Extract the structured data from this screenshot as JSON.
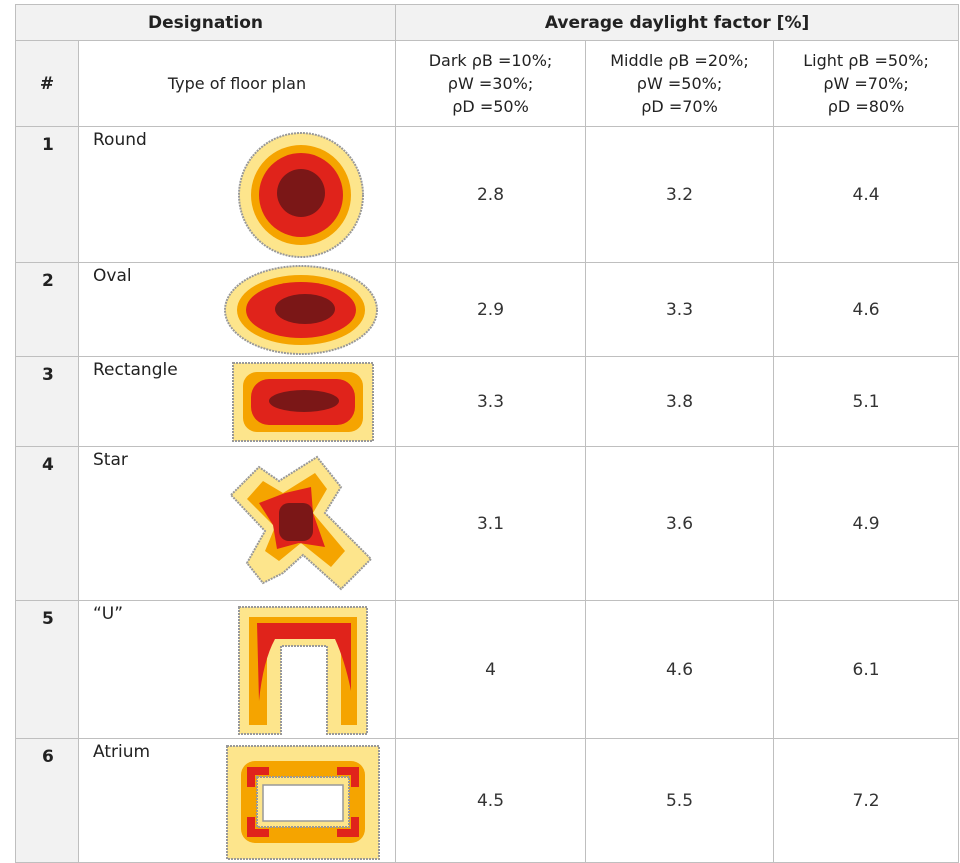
{
  "table": {
    "group_headers": [
      "Designation",
      "Average daylight factor [%]"
    ],
    "columns": [
      [
        "#"
      ],
      [
        "Type of floor plan"
      ],
      [
        "Dark ρB =10%;",
        "ρW =30%;",
        "ρD =50%"
      ],
      [
        "Middle ρB =20%;",
        "ρW =50%;",
        "ρD =70%"
      ],
      [
        "Light ρB =50%;",
        "ρW =70%;",
        "ρD =80%"
      ]
    ],
    "rows": [
      [
        "1",
        "Round",
        2.8,
        3.2,
        4.4
      ],
      [
        "2",
        "Oval",
        2.9,
        3.3,
        4.6
      ],
      [
        "3",
        "Rectangle",
        3.3,
        3.8,
        5.1
      ],
      [
        "4",
        "Star",
        3.1,
        3.6,
        4.9
      ],
      [
        "5",
        "“U”",
        4,
        4.6,
        6.1
      ],
      [
        "6",
        "Atrium",
        4.5,
        5.5,
        7.2
      ]
    ]
  }
}
